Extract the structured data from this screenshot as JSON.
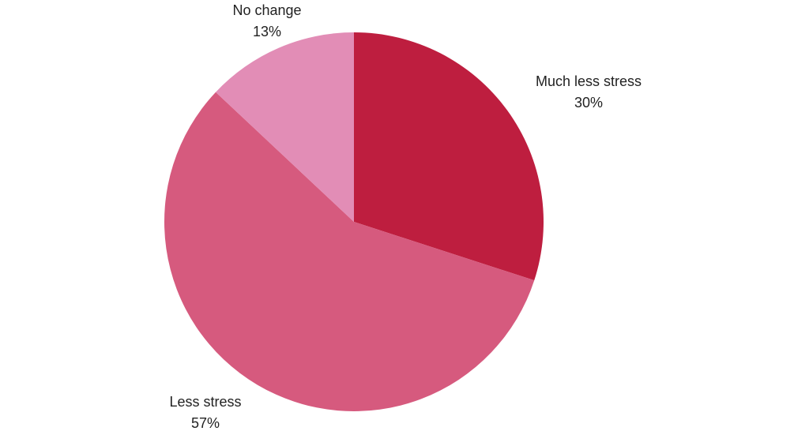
{
  "chart_data": {
    "type": "pie",
    "categories": [
      "Much less stress",
      "Less stress",
      "No change"
    ],
    "values": [
      30,
      57,
      13
    ],
    "value_labels": [
      "30%",
      "57%",
      "13%"
    ],
    "colors": [
      "#be1e3f",
      "#d65a7e",
      "#e28db6"
    ]
  }
}
